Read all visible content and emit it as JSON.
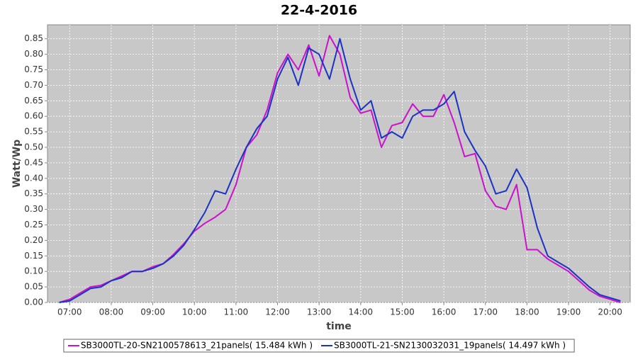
{
  "chart_data": {
    "type": "line",
    "title": "22-4-2016",
    "x_label": "time",
    "y_label": "Watt/Wp",
    "x": [
      "06:45",
      "07:00",
      "07:15",
      "07:30",
      "07:45",
      "08:00",
      "08:15",
      "08:30",
      "08:45",
      "09:00",
      "09:15",
      "09:30",
      "09:45",
      "10:00",
      "10:15",
      "10:30",
      "10:45",
      "11:00",
      "11:15",
      "11:30",
      "11:45",
      "12:00",
      "12:15",
      "12:30",
      "12:45",
      "13:00",
      "13:15",
      "13:30",
      "13:45",
      "14:00",
      "14:15",
      "14:30",
      "14:45",
      "15:00",
      "15:15",
      "15:30",
      "15:45",
      "16:00",
      "16:15",
      "16:30",
      "16:45",
      "17:00",
      "17:15",
      "17:30",
      "17:45",
      "18:00",
      "18:15",
      "18:30",
      "18:45",
      "19:00",
      "19:15",
      "19:30",
      "19:45",
      "20:00",
      "20:15"
    ],
    "series": [
      {
        "name": "SB3000TL-20-SN2100578613_21panels( 15.484 kWh )",
        "color": "#cc11cc",
        "values": [
          0,
          0.01,
          0.03,
          0.05,
          0.055,
          0.07,
          0.085,
          0.1,
          0.1,
          0.115,
          0.125,
          0.155,
          0.19,
          0.23,
          0.255,
          0.275,
          0.3,
          0.38,
          0.5,
          0.54,
          0.62,
          0.74,
          0.8,
          0.75,
          0.83,
          0.73,
          0.86,
          0.8,
          0.66,
          0.61,
          0.62,
          0.5,
          0.57,
          0.58,
          0.64,
          0.6,
          0.6,
          0.67,
          0.58,
          0.47,
          0.48,
          0.36,
          0.31,
          0.3,
          0.38,
          0.17,
          0.17,
          0.14,
          0.12,
          0.1,
          0.07,
          0.04,
          0.02,
          0.01,
          0
        ]
      },
      {
        "name": "SB3000TL-21-SN2130032031_19panels( 14.497 kWh )",
        "color": "#1a33c4",
        "values": [
          0,
          0.005,
          0.025,
          0.045,
          0.05,
          0.07,
          0.08,
          0.1,
          0.1,
          0.11,
          0.125,
          0.15,
          0.185,
          0.235,
          0.29,
          0.36,
          0.35,
          0.43,
          0.5,
          0.56,
          0.6,
          0.72,
          0.79,
          0.7,
          0.82,
          0.8,
          0.72,
          0.85,
          0.72,
          0.62,
          0.65,
          0.53,
          0.55,
          0.53,
          0.6,
          0.62,
          0.62,
          0.64,
          0.68,
          0.55,
          0.49,
          0.44,
          0.35,
          0.36,
          0.43,
          0.37,
          0.24,
          0.15,
          0.13,
          0.11,
          0.08,
          0.05,
          0.025,
          0.015,
          0.005
        ]
      }
    ],
    "xlim": [
      "06:28",
      "20:29"
    ],
    "xticks": [
      "07:00",
      "08:00",
      "09:00",
      "10:00",
      "11:00",
      "12:00",
      "13:00",
      "14:00",
      "15:00",
      "16:00",
      "17:00",
      "18:00",
      "19:00",
      "20:00"
    ],
    "ylim": [
      0,
      0.895
    ],
    "yticks": [
      {
        "value": 0,
        "label": "0.00"
      },
      {
        "value": 0.05,
        "label": "0.05"
      },
      {
        "value": 0.1,
        "label": "0.10"
      },
      {
        "value": 0.15,
        "label": "0.15"
      },
      {
        "value": 0.2,
        "label": "0.20"
      },
      {
        "value": 0.25,
        "label": "0.25"
      },
      {
        "value": 0.3,
        "label": "0.30"
      },
      {
        "value": 0.35,
        "label": "0.35"
      },
      {
        "value": 0.4,
        "label": "0.40"
      },
      {
        "value": 0.45,
        "label": "0.45"
      },
      {
        "value": 0.5,
        "label": "0.50"
      },
      {
        "value": 0.55,
        "label": "0.55"
      },
      {
        "value": 0.6,
        "label": "0.60"
      },
      {
        "value": 0.65,
        "label": "0.65"
      },
      {
        "value": 0.7,
        "label": "0.70"
      },
      {
        "value": 0.75,
        "label": "0.75"
      },
      {
        "value": 0.8,
        "label": "0.80"
      },
      {
        "value": 0.85,
        "label": "0.85"
      }
    ],
    "grid": true
  }
}
